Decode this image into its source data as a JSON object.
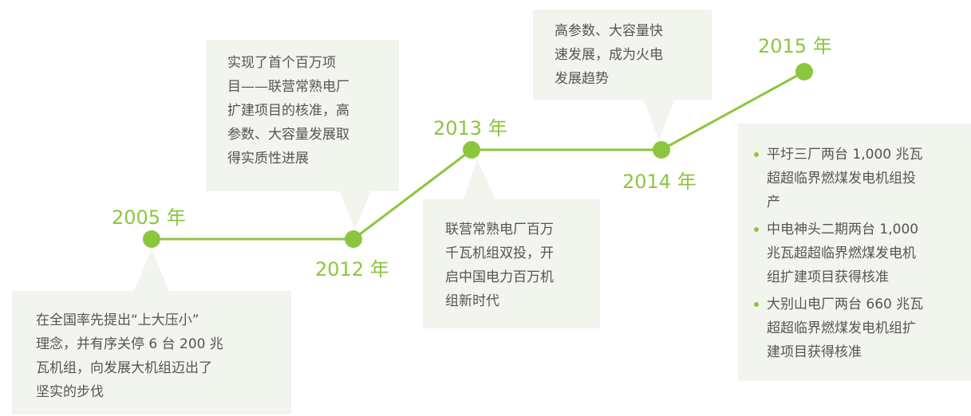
{
  "milestones": [
    {
      "year": "2005 年",
      "lines": [
        "在全国率先提出“上大压小”",
        "理念，并有序关停 6 台 200 兆",
        "瓦机组，向发展大机组迈出了",
        "坚实的步伐"
      ]
    },
    {
      "year": "2012 年",
      "lines": [
        "实现了首个百万项",
        "目——联营常熟电厂",
        "扩建项目的核准，高",
        "参数、大容量发展取",
        "得实质性进展"
      ]
    },
    {
      "year": "2013 年",
      "lines": [
        "联营常熟电厂百万",
        "千瓦机组双投，开",
        "启中国电力百万机",
        "组新时代"
      ]
    },
    {
      "year": "2014 年",
      "lines": [
        "高参数、大容量快",
        "速发展，成为火电",
        "发展趋势"
      ]
    },
    {
      "year": "2015 年",
      "items": [
        [
          "平圩三厂两台 1,000 兆瓦",
          "超超临界燃煤发电机组投",
          "产"
        ],
        [
          "中电神头二期两台 1,000",
          "兆瓦超超临界燃煤发电机",
          "组扩建项目获得核准"
        ],
        [
          "大别山电厂两台 660 兆瓦",
          "超超临界燃煤发电机组扩",
          "建项目获得核准"
        ]
      ]
    }
  ]
}
